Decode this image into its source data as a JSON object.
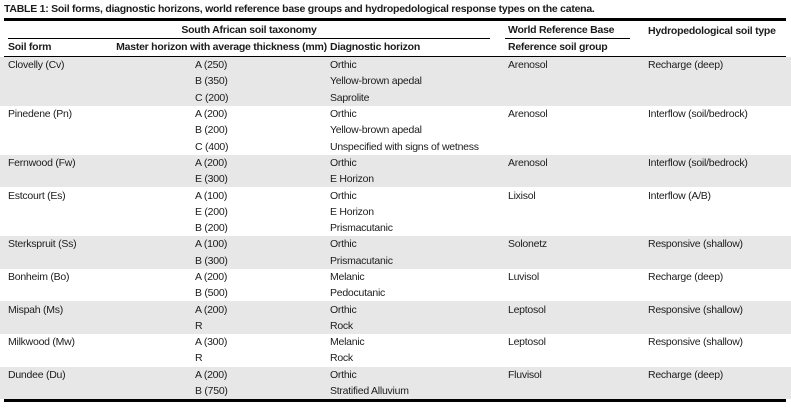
{
  "title": "TABLE 1: Soil forms, diagnostic horizons, world reference base groups and hydropedological response types on the catena.",
  "table": {
    "span_headers": {
      "south_african": "South African soil taxonomy",
      "world_reference_base": "World Reference Base",
      "hydropedological": "Hydropedological soil type"
    },
    "columns": {
      "soil_form": "Soil form",
      "master_horizon": "Master horizon with average thickness (mm)",
      "diagnostic_horizon": "Diagnostic horizon",
      "reference_soil_group": "Reference soil group",
      "hydro_blank": ""
    },
    "rows": [
      {
        "soil_form": "Clovelly (Cv)",
        "reference_soil_group": "Arenosol",
        "hydropedological_type": "Recharge (deep)",
        "horizons": [
          {
            "master": "A (250)",
            "diagnostic": "Orthic"
          },
          {
            "master": "B (350)",
            "diagnostic": "Yellow-brown apedal"
          },
          {
            "master": "C (200)",
            "diagnostic": "Saprolite"
          }
        ]
      },
      {
        "soil_form": "Pinedene (Pn)",
        "reference_soil_group": "Arenosol",
        "hydropedological_type": "Interflow (soil/bedrock)",
        "horizons": [
          {
            "master": "A (200)",
            "diagnostic": "Orthic"
          },
          {
            "master": "B (200)",
            "diagnostic": "Yellow-brown apedal"
          },
          {
            "master": "C (400)",
            "diagnostic": "Unspecified with signs of wetness"
          }
        ]
      },
      {
        "soil_form": "Fernwood (Fw)",
        "reference_soil_group": "Arenosol",
        "hydropedological_type": "Interflow (soil/bedrock)",
        "horizons": [
          {
            "master": "A (200)",
            "diagnostic": "Orthic"
          },
          {
            "master": "E (300)",
            "diagnostic": "E Horizon"
          }
        ]
      },
      {
        "soil_form": "Estcourt (Es)",
        "reference_soil_group": "Lixisol",
        "hydropedological_type": "Interflow (A/B)",
        "horizons": [
          {
            "master": "A (100)",
            "diagnostic": "Orthic"
          },
          {
            "master": "E (200)",
            "diagnostic": "E Horizon"
          },
          {
            "master": "B (200)",
            "diagnostic": "Prismacutanic"
          }
        ]
      },
      {
        "soil_form": "Sterkspruit (Ss)",
        "reference_soil_group": "Solonetz",
        "hydropedological_type": "Responsive (shallow)",
        "horizons": [
          {
            "master": "A (100)",
            "diagnostic": "Orthic"
          },
          {
            "master": "B (300)",
            "diagnostic": "Prismacutanic"
          }
        ]
      },
      {
        "soil_form": "Bonheim (Bo)",
        "reference_soil_group": "Luvisol",
        "hydropedological_type": "Recharge (deep)",
        "horizons": [
          {
            "master": "A (200)",
            "diagnostic": "Melanic"
          },
          {
            "master": "B (500)",
            "diagnostic": "Pedocutanic"
          }
        ]
      },
      {
        "soil_form": "Mispah (Ms)",
        "reference_soil_group": "Leptosol",
        "hydropedological_type": "Responsive (shallow)",
        "horizons": [
          {
            "master": "A (200)",
            "diagnostic": "Orthic"
          },
          {
            "master": "R",
            "diagnostic": "Rock"
          }
        ]
      },
      {
        "soil_form": "Milkwood (Mw)",
        "reference_soil_group": "Leptosol",
        "hydropedological_type": "Responsive (shallow)",
        "horizons": [
          {
            "master": "A (300)",
            "diagnostic": "Melanic"
          },
          {
            "master": "R",
            "diagnostic": "Rock"
          }
        ]
      },
      {
        "soil_form": "Dundee (Du)",
        "reference_soil_group": "Fluvisol",
        "hydropedological_type": "Recharge (deep)",
        "horizons": [
          {
            "master": "A (200)",
            "diagnostic": "Orthic"
          },
          {
            "master": "B (750)",
            "diagnostic": "Stratified Alluvium"
          }
        ]
      }
    ]
  },
  "colors": {
    "row_shade": "#e7e7e7",
    "border": "#000000",
    "text": "#1c1c1c"
  }
}
